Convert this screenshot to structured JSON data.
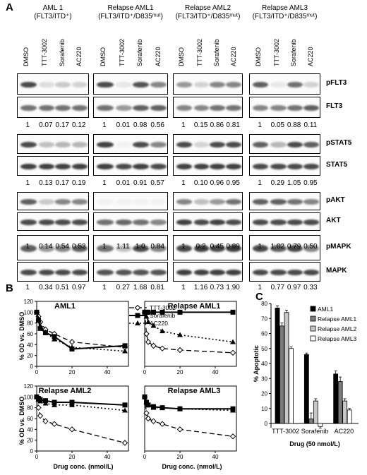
{
  "panelA": {
    "letter": "A",
    "groups": [
      {
        "title": "AML 1",
        "sub": "(FLT3/ITD⁺)"
      },
      {
        "title": "Relapse AML1",
        "sub": "(FLT3/ITD⁺/D835ᵐᵘᵗ)"
      },
      {
        "title": "Relapse AML2",
        "sub": "(FLT3/ITD⁺/D835ᵐᵘᵗ)"
      },
      {
        "title": "Relapse AML3",
        "sub": "(FLT3/ITD⁺/D835ᵐᵘᵗ)"
      }
    ],
    "lanes": [
      "DMSO",
      "TTT-3002",
      "Sorafenib",
      "AC220"
    ],
    "proteins": [
      "pFLT3",
      "FLT3",
      "pSTAT5",
      "STAT5",
      "pAKT",
      "AKT",
      "pMAPK",
      "MAPK"
    ],
    "quant": [
      [
        "1",
        "0.07",
        "0.17",
        "0.12",
        "1",
        "0.01",
        "0.98",
        "0.56",
        "1",
        "0.15",
        "0.86",
        "0.81",
        "1",
        "0.05",
        "0.88",
        "0.11"
      ],
      [
        "1",
        "0.13",
        "0.17",
        "0.19",
        "1",
        "0.01",
        "0.91",
        "0.57",
        "1",
        "0.10",
        "0.96",
        "0.95",
        "1",
        "0.29",
        "1.05",
        "0.95"
      ],
      [
        "1",
        "0.14",
        "0.54",
        "0.53",
        "1",
        "1.11",
        "1.0",
        "0.84",
        "1",
        "0.2",
        "0.45",
        "0.89",
        "1",
        "1.02",
        "0.79",
        "0.50"
      ],
      [
        "1",
        "0.34",
        "0.51",
        "0.97",
        "1",
        "0.27",
        "1.68",
        "0.81",
        "1",
        "1.16",
        "0.73",
        "1.90",
        "1",
        "0.77",
        "0.97",
        "0.33"
      ]
    ]
  },
  "panelB": {
    "letter": "B",
    "ylabel": "% OD vs. DMSO",
    "xlabel": "Drug conc. (nmol/L)",
    "legend": [
      "TTT-3002",
      "Sorafenib",
      "AC220"
    ],
    "yticks": [
      "0",
      "20",
      "40",
      "60",
      "80",
      "100",
      "120"
    ],
    "xticks": [
      "0",
      "20",
      "40"
    ]
  },
  "panelC": {
    "letter": "C",
    "ylabel": "% Apoptotic",
    "xlabel": "Drug (50 nmol/L)",
    "yticks": [
      "0",
      "10",
      "20",
      "30",
      "40",
      "50",
      "60",
      "70",
      "80"
    ],
    "legend": [
      "AML1",
      "Relapse AML1",
      "Relapse AML2",
      "Relapse AML3"
    ]
  },
  "chart_data": [
    {
      "type": "line",
      "title": "AML1",
      "xlabel": "Drug conc. (nmol/L)",
      "ylabel": "% OD vs. DMSO",
      "ylim": [
        0,
        120
      ],
      "series": [
        {
          "name": "TTT-3002",
          "x": [
            0,
            1,
            2,
            5,
            10,
            20,
            50
          ],
          "y": [
            100,
            92,
            82,
            68,
            60,
            45,
            35
          ]
        },
        {
          "name": "Sorafenib",
          "x": [
            0,
            1,
            2,
            5,
            10,
            20,
            50
          ],
          "y": [
            100,
            85,
            70,
            62,
            55,
            32,
            38
          ]
        },
        {
          "name": "AC220",
          "x": [
            0,
            1,
            2,
            5,
            10,
            20,
            50
          ],
          "y": [
            100,
            88,
            75,
            63,
            50,
            35,
            28
          ]
        }
      ]
    },
    {
      "type": "line",
      "title": "Relapse AML1",
      "xlabel": "Drug conc. (nmol/L)",
      "ylabel": "% OD vs. DMSO",
      "ylim": [
        0,
        120
      ],
      "series": [
        {
          "name": "TTT-3002",
          "x": [
            0,
            1,
            2,
            5,
            10,
            20,
            50
          ],
          "y": [
            100,
            60,
            45,
            38,
            33,
            30,
            25
          ]
        },
        {
          "name": "Sorafenib",
          "x": [
            0,
            1,
            2,
            5,
            10,
            20,
            50
          ],
          "y": [
            100,
            100,
            100,
            100,
            100,
            100,
            100
          ]
        },
        {
          "name": "AC220",
          "x": [
            0,
            1,
            2,
            5,
            10,
            20,
            50
          ],
          "y": [
            100,
            92,
            82,
            75,
            65,
            58,
            45
          ]
        }
      ]
    },
    {
      "type": "line",
      "title": "Relapse AML2",
      "xlabel": "Drug conc. (nmol/L)",
      "ylabel": "% OD vs. DMSO",
      "ylim": [
        0,
        120
      ],
      "series": [
        {
          "name": "TTT-3002",
          "x": [
            0,
            1,
            2,
            5,
            10,
            20,
            50
          ],
          "y": [
            100,
            80,
            65,
            55,
            50,
            40,
            15
          ]
        },
        {
          "name": "Sorafenib",
          "x": [
            0,
            1,
            2,
            5,
            10,
            20,
            50
          ],
          "y": [
            100,
            97,
            95,
            93,
            90,
            90,
            85
          ]
        },
        {
          "name": "AC220",
          "x": [
            0,
            1,
            2,
            5,
            10,
            20,
            50
          ],
          "y": [
            100,
            95,
            92,
            88,
            85,
            85,
            75
          ]
        }
      ]
    },
    {
      "type": "line",
      "title": "Relapse AML3",
      "xlabel": "Drug conc. (nmol/L)",
      "ylabel": "% OD vs. DMSO",
      "ylim": [
        0,
        120
      ],
      "series": [
        {
          "name": "TTT-3002",
          "x": [
            0,
            1,
            2,
            5,
            10,
            20,
            50
          ],
          "y": [
            100,
            70,
            60,
            55,
            50,
            40,
            27
          ]
        },
        {
          "name": "Sorafenib",
          "x": [
            0,
            1,
            2,
            5,
            10,
            20,
            50
          ],
          "y": [
            100,
            90,
            85,
            82,
            80,
            78,
            78
          ]
        },
        {
          "name": "AC220",
          "x": [
            0,
            1,
            2,
            5,
            10,
            20,
            50
          ],
          "y": [
            100,
            90,
            85,
            80,
            80,
            78,
            75
          ]
        }
      ]
    },
    {
      "type": "bar",
      "xlabel": "Drug (50 nmol/L)",
      "ylabel": "% Apoptotic",
      "ylim": [
        0,
        80
      ],
      "categories": [
        "TTT-3002",
        "Sorafenib",
        "AC220"
      ],
      "series": [
        {
          "name": "AML1",
          "values": [
            77,
            46,
            33
          ]
        },
        {
          "name": "Relapse AML1",
          "values": [
            65,
            3,
            28
          ]
        },
        {
          "name": "Relapse AML2",
          "values": [
            74,
            15,
            15
          ]
        },
        {
          "name": "Relapse AML3",
          "values": [
            50,
            -2,
            9
          ]
        }
      ]
    }
  ]
}
